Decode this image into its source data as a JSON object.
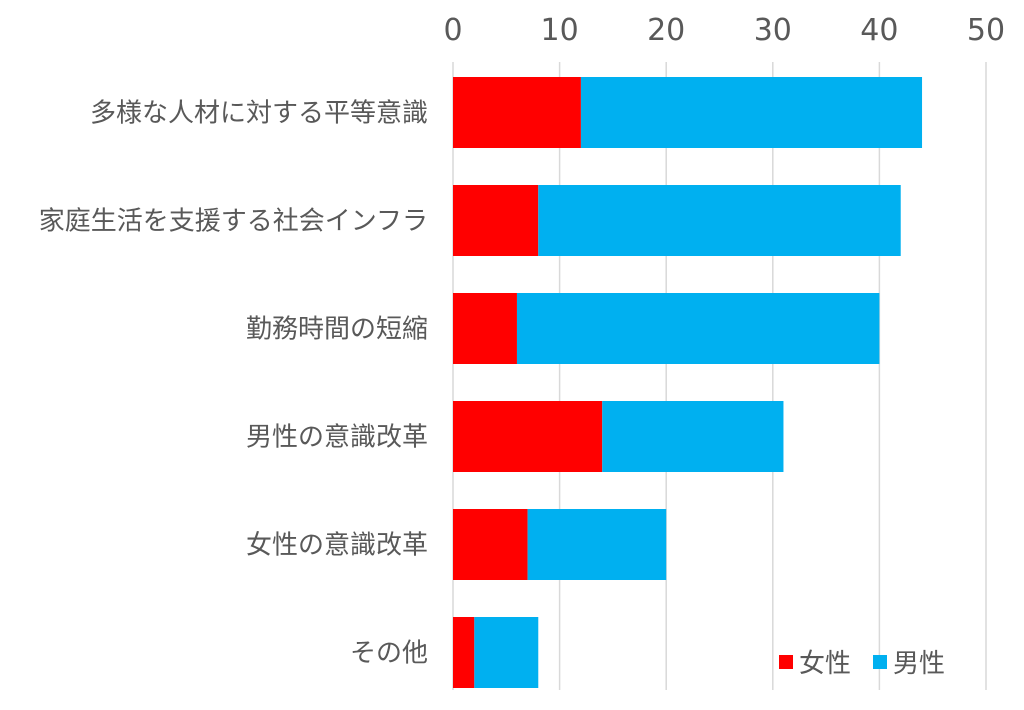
{
  "chart_data": {
    "type": "bar",
    "orientation": "horizontal",
    "stacked": true,
    "categories": [
      "多様な人材に対する平等意識",
      "家庭生活を支援する社会インフラ",
      "勤務時間の短縮",
      "男性の意識改革",
      "女性の意識改革",
      "その他"
    ],
    "series": [
      {
        "name": "女性",
        "color": "#ff0000",
        "values": [
          12,
          8,
          6,
          14,
          7,
          2
        ]
      },
      {
        "name": "男性",
        "color": "#00b0f0",
        "values": [
          32,
          34,
          34,
          17,
          13,
          6
        ]
      }
    ],
    "xticks": [
      "0",
      "10",
      "20",
      "30",
      "40",
      "50"
    ],
    "xlim": [
      0,
      50
    ],
    "x_axis_position": "top",
    "grid": true,
    "legend_position": "bottom-right",
    "title": "",
    "xlabel": "",
    "ylabel": ""
  }
}
